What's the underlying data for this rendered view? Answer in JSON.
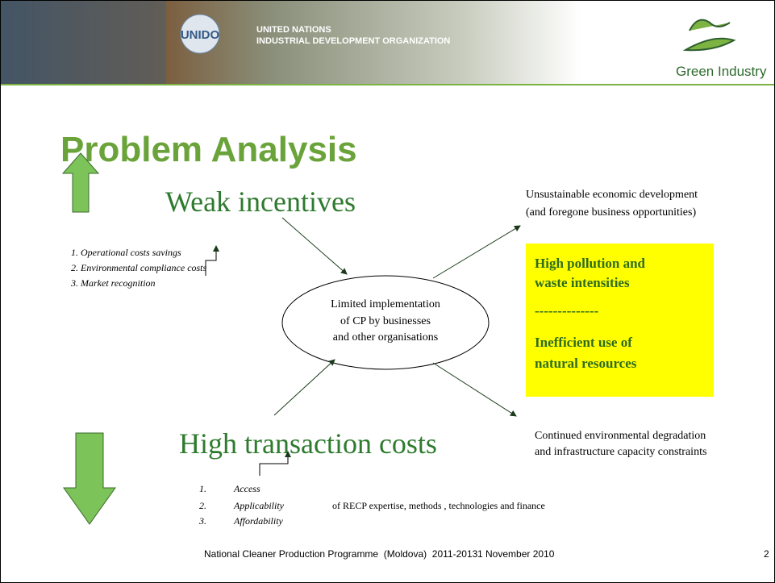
{
  "header": {
    "org_line1": "UNITED NATIONS",
    "org_line2": "INDUSTRIAL DEVELOPMENT ORGANIZATION",
    "logo_text": "UNIDO",
    "brand": "Green Industry"
  },
  "title": "Problem Analysis",
  "weak_incentives": {
    "heading": "Weak incentives",
    "items": [
      "1. Operational costs savings",
      "2. Environmental compliance costs",
      "3. Market recognition"
    ]
  },
  "center": {
    "lines": [
      "Limited implementation",
      "of CP by businesses",
      "and other organisations"
    ]
  },
  "outcome_top": {
    "lines": [
      "Unsustainable economic development",
      "(and foregone business opportunities)"
    ]
  },
  "yellow_box": {
    "lines": [
      "High pollution and",
      "waste intensities",
      "--------------",
      "Inefficient use of",
      "natural resources"
    ]
  },
  "outcome_bottom": {
    "lines": [
      "Continued environmental degradation",
      "and infrastructure capacity constraints"
    ]
  },
  "high_costs": {
    "heading": "High transaction costs",
    "items": [
      {
        "num": "1.",
        "text": "Access"
      },
      {
        "num": "2.",
        "text": "Applicability"
      },
      {
        "num": "3.",
        "text": "Affordability"
      }
    ],
    "suffix": "of RECP expertise, methods , technologies and finance"
  },
  "footer": {
    "programme": "National Cleaner Production Programme  (Moldova)  2011-2013",
    "date": "1 November 2010",
    "page": "2"
  }
}
